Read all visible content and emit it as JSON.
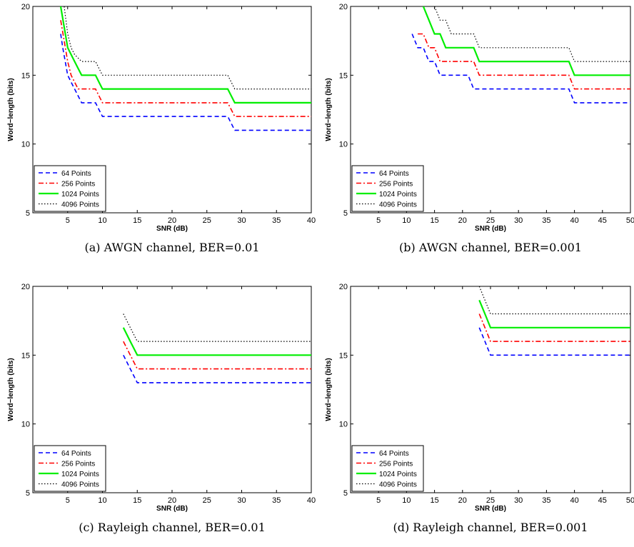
{
  "chart_data": [
    {
      "type": "line",
      "caption": "(a)  AWGN channel, BER=0.01",
      "xlabel": "SNR (dB)",
      "ylabel": "Word−length (bits)",
      "xlim": [
        0,
        40
      ],
      "ylim": [
        5,
        20
      ],
      "xticks": [
        5,
        10,
        15,
        20,
        25,
        30,
        35,
        40
      ],
      "yticks": [
        5,
        10,
        15,
        20
      ],
      "grid": false,
      "legend_position": "bottom-left",
      "series": [
        {
          "name": "64 Points",
          "color": "#0000ff",
          "style": "dashed",
          "x": [
            4,
            4.3,
            5,
            5.5,
            6,
            6.5,
            7,
            9,
            9.5,
            10,
            28,
            28.5,
            29,
            40
          ],
          "y": [
            18,
            17,
            15,
            14.5,
            14,
            13.5,
            13,
            13,
            12.5,
            12,
            12,
            11.5,
            11,
            11
          ]
        },
        {
          "name": "256 Points",
          "color": "#ff0000",
          "style": "dashdot",
          "x": [
            4,
            4.5,
            5,
            5.5,
            6,
            6.5,
            7,
            9,
            9.5,
            10,
            28,
            28.5,
            29,
            40
          ],
          "y": [
            19,
            17.5,
            16,
            15,
            14.5,
            14,
            14,
            14,
            13.5,
            13,
            13,
            12.5,
            12,
            12
          ]
        },
        {
          "name": "1024 Points",
          "color": "#00ee00",
          "style": "solid",
          "x": [
            4,
            4.5,
            5,
            5.5,
            6,
            6.5,
            7,
            9,
            9.5,
            10,
            28,
            28.5,
            29,
            40
          ],
          "y": [
            20,
            18.5,
            17,
            16.5,
            16,
            15.5,
            15,
            15,
            14.5,
            14,
            14,
            13.5,
            13,
            13
          ]
        },
        {
          "name": "4096 Points",
          "color": "#000000",
          "style": "dotted",
          "x": [
            4.5,
            5,
            5.5,
            6,
            7,
            8,
            9,
            9.5,
            10,
            28,
            28.5,
            29,
            40
          ],
          "y": [
            20,
            18,
            17,
            16.5,
            16,
            16,
            16,
            15.5,
            15,
            15,
            14.5,
            14,
            14
          ]
        }
      ]
    },
    {
      "type": "line",
      "caption": "(b)  AWGN channel, BER=0.001",
      "xlabel": "SNR (dB)",
      "ylabel": "Word−length (bits)",
      "xlim": [
        0,
        50
      ],
      "ylim": [
        5,
        20
      ],
      "xticks": [
        5,
        10,
        15,
        20,
        25,
        30,
        35,
        40,
        45,
        50
      ],
      "yticks": [
        5,
        10,
        15,
        20
      ],
      "grid": false,
      "legend_position": "bottom-left",
      "series": [
        {
          "name": "64 Points",
          "color": "#0000ff",
          "style": "dashed",
          "x": [
            11,
            12,
            13,
            14,
            15,
            16,
            17,
            21,
            22,
            39,
            40,
            50
          ],
          "y": [
            18,
            17,
            17,
            16,
            16,
            15,
            15,
            15,
            14,
            14,
            13,
            13
          ]
        },
        {
          "name": "256 Points",
          "color": "#ff0000",
          "style": "dashdot",
          "x": [
            12,
            13,
            14,
            15,
            16,
            17,
            18,
            22,
            23,
            39,
            40,
            50
          ],
          "y": [
            18,
            18,
            17,
            17,
            16,
            16,
            16,
            16,
            15,
            15,
            14,
            14
          ]
        },
        {
          "name": "1024 Points",
          "color": "#00ee00",
          "style": "solid",
          "x": [
            13,
            14,
            15,
            16,
            17,
            22,
            23,
            39,
            40,
            50
          ],
          "y": [
            20,
            19,
            18,
            18,
            17,
            17,
            16,
            16,
            15,
            15
          ]
        },
        {
          "name": "4096 Points",
          "color": "#000000",
          "style": "dotted",
          "x": [
            15,
            16,
            17,
            18,
            22,
            23,
            39,
            40,
            50
          ],
          "y": [
            20,
            19,
            19,
            18,
            18,
            17,
            17,
            16,
            16
          ]
        }
      ]
    },
    {
      "type": "line",
      "caption": "(c)  Rayleigh channel, BER=0.01",
      "xlabel": "SNR (dB)",
      "ylabel": "Word−length (bits)",
      "xlim": [
        0,
        40
      ],
      "ylim": [
        5,
        20
      ],
      "xticks": [
        5,
        10,
        15,
        20,
        25,
        30,
        35,
        40
      ],
      "yticks": [
        5,
        10,
        15,
        20
      ],
      "grid": false,
      "legend_position": "bottom-left",
      "series": [
        {
          "name": "64 Points",
          "color": "#0000ff",
          "style": "dashed",
          "x": [
            13,
            14,
            15,
            40
          ],
          "y": [
            15,
            14,
            13,
            13
          ]
        },
        {
          "name": "256 Points",
          "color": "#ff0000",
          "style": "dashdot",
          "x": [
            13,
            14,
            15,
            40
          ],
          "y": [
            16,
            15,
            14,
            14
          ]
        },
        {
          "name": "1024 Points",
          "color": "#00ee00",
          "style": "solid",
          "x": [
            13,
            14,
            15,
            40
          ],
          "y": [
            17,
            16,
            15,
            15
          ]
        },
        {
          "name": "4096 Points",
          "color": "#000000",
          "style": "dotted",
          "x": [
            13,
            14,
            15,
            40
          ],
          "y": [
            18,
            17,
            16,
            16
          ]
        }
      ]
    },
    {
      "type": "line",
      "caption": "(d)  Rayleigh channel, BER=0.001",
      "xlabel": "SNR (dB)",
      "ylabel": "Word−length (bits)",
      "xlim": [
        0,
        50
      ],
      "ylim": [
        5,
        20
      ],
      "xticks": [
        5,
        10,
        15,
        20,
        25,
        30,
        35,
        40,
        45,
        50
      ],
      "yticks": [
        5,
        10,
        15,
        20
      ],
      "grid": false,
      "legend_position": "bottom-left",
      "series": [
        {
          "name": "64 Points",
          "color": "#0000ff",
          "style": "dashed",
          "x": [
            23,
            24,
            25,
            50
          ],
          "y": [
            17,
            16,
            15,
            15
          ]
        },
        {
          "name": "256 Points",
          "color": "#ff0000",
          "style": "dashdot",
          "x": [
            23,
            24,
            25,
            50
          ],
          "y": [
            18,
            17,
            16,
            16
          ]
        },
        {
          "name": "1024 Points",
          "color": "#00ee00",
          "style": "solid",
          "x": [
            23,
            24,
            25,
            50
          ],
          "y": [
            19,
            18,
            17,
            17
          ]
        },
        {
          "name": "4096 Points",
          "color": "#000000",
          "style": "dotted",
          "x": [
            23,
            24,
            25,
            50
          ],
          "y": [
            20,
            19,
            18,
            18
          ]
        }
      ]
    }
  ]
}
